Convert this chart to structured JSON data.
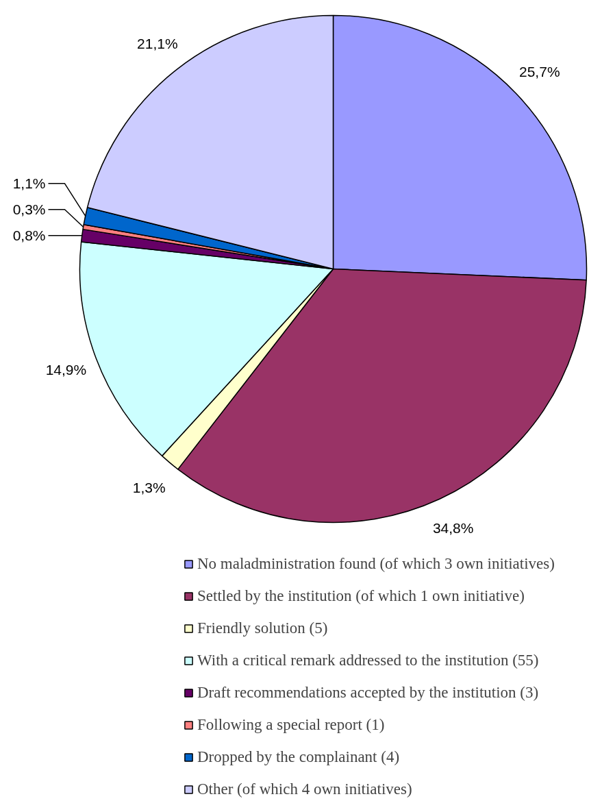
{
  "chart_data": {
    "type": "pie",
    "categories": [
      "No maladministration found (of which 3 own initiatives)",
      "Settled by the institution (of which 1 own initiative)",
      "Friendly solution (5)",
      "With a critical remark addressed to the institution (55)",
      "Draft recommendations accepted by the institution (3)",
      "Following a special report (1)",
      "Dropped by the complainant (4)",
      "Other (of which 4 own initiatives)"
    ],
    "values": [
      25.7,
      34.8,
      1.3,
      14.9,
      0.8,
      0.3,
      1.1,
      21.1
    ],
    "colors": [
      "#9999ff",
      "#993366",
      "#ffffcc",
      "#ccffff",
      "#660066",
      "#ff8080",
      "#0066cc",
      "#ccccff"
    ],
    "value_labels": [
      "25,7%",
      "34,8%",
      "1,3%",
      "14,9%",
      "0,8%",
      "0,3%",
      "1,1%",
      "21,1%"
    ],
    "legend": "bottom"
  }
}
